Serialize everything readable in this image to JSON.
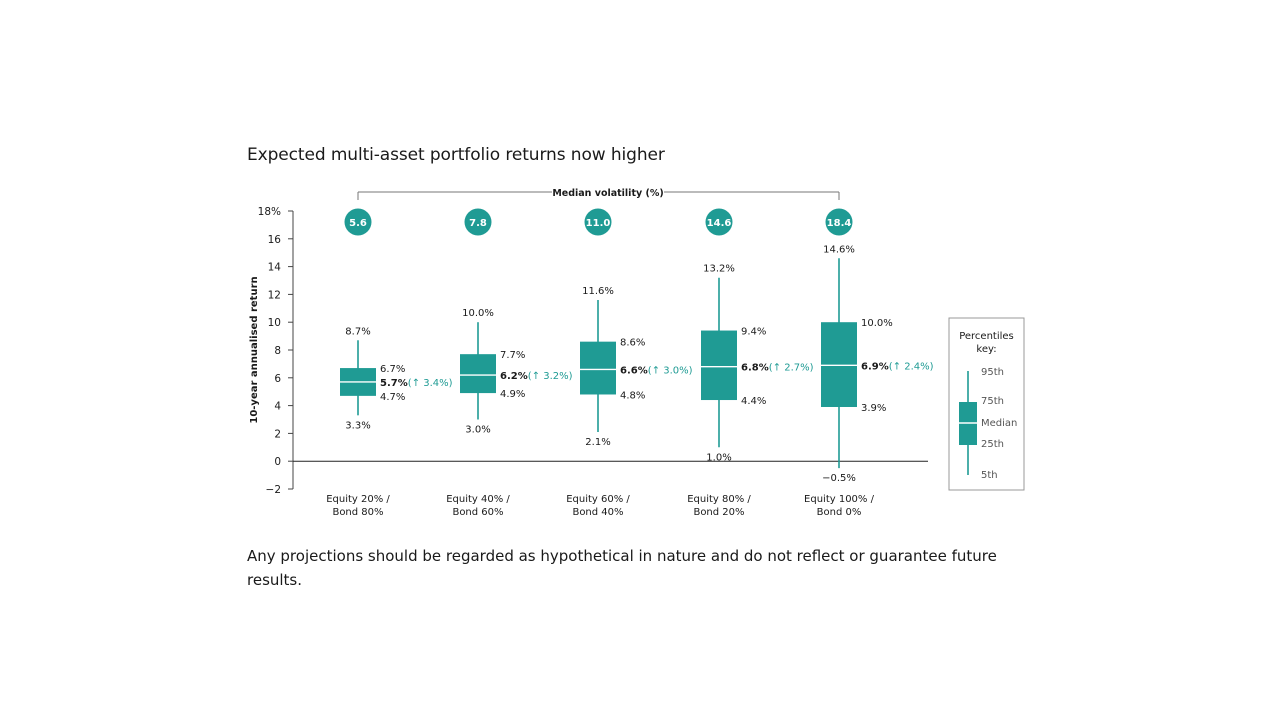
{
  "title": "Expected multi-asset portfolio returns now higher",
  "footnote": "Any projections should be regarded as hypothetical in nature and do not reflect or guarantee future results.",
  "colors": {
    "teal": "#1f9b94",
    "text": "#1a1a1a",
    "axis": "#555555",
    "change": "#1f9b94"
  },
  "chart_data": {
    "type": "box",
    "ylabel": "10-year annualised return",
    "ylim": [
      -2,
      18
    ],
    "y_ticks": [
      "18%",
      "16",
      "14",
      "12",
      "10",
      "8",
      "6",
      "4",
      "2",
      "0",
      "−2"
    ],
    "y_tick_values": [
      18,
      16,
      14,
      12,
      10,
      8,
      6,
      4,
      2,
      0,
      -2
    ],
    "volatility_label": "Median volatility (%)",
    "categories": [
      {
        "line1": "Equity 20% /",
        "line2": "Bond 80%",
        "p5": 3.3,
        "p25": 4.7,
        "median": 5.7,
        "p75": 6.7,
        "p95": 8.7,
        "p5_label": "3.3%",
        "p25_label": "4.7%",
        "median_label": "5.7%",
        "p75_label": "6.7%",
        "p95_label": "8.7%",
        "change_label": "(↑ 3.4%)",
        "volatility": "5.6"
      },
      {
        "line1": "Equity 40% /",
        "line2": "Bond 60%",
        "p5": 3.0,
        "p25": 4.9,
        "median": 6.2,
        "p75": 7.7,
        "p95": 10.0,
        "p5_label": "3.0%",
        "p25_label": "4.9%",
        "median_label": "6.2%",
        "p75_label": "7.7%",
        "p95_label": "10.0%",
        "change_label": "(↑ 3.2%)",
        "volatility": "7.8"
      },
      {
        "line1": "Equity 60% /",
        "line2": "Bond 40%",
        "p5": 2.1,
        "p25": 4.8,
        "median": 6.6,
        "p75": 8.6,
        "p95": 11.6,
        "p5_label": "2.1%",
        "p25_label": "4.8%",
        "median_label": "6.6%",
        "p75_label": "8.6%",
        "p95_label": "11.6%",
        "change_label": "(↑ 3.0%)",
        "volatility": "11.0"
      },
      {
        "line1": "Equity 80% /",
        "line2": "Bond 20%",
        "p5": 1.0,
        "p25": 4.4,
        "median": 6.8,
        "p75": 9.4,
        "p95": 13.2,
        "p5_label": "1.0%",
        "p25_label": "4.4%",
        "median_label": "6.8%",
        "p75_label": "9.4%",
        "p95_label": "13.2%",
        "change_label": "(↑ 2.7%)",
        "volatility": "14.6"
      },
      {
        "line1": "Equity 100% /",
        "line2": "Bond 0%",
        "p5": -0.5,
        "p25": 3.9,
        "median": 6.9,
        "p75": 10.0,
        "p95": 14.6,
        "p5_label": "−0.5%",
        "p25_label": "3.9%",
        "median_label": "6.9%",
        "p75_label": "10.0%",
        "p95_label": "14.6%",
        "change_label": "(↑ 2.4%)",
        "volatility": "18.4"
      }
    ],
    "key": {
      "title_line1": "Percentiles",
      "title_line2": "key:",
      "p95": "95th",
      "p75": "75th",
      "median": "Median",
      "p25": "25th",
      "p5": "5th"
    }
  }
}
